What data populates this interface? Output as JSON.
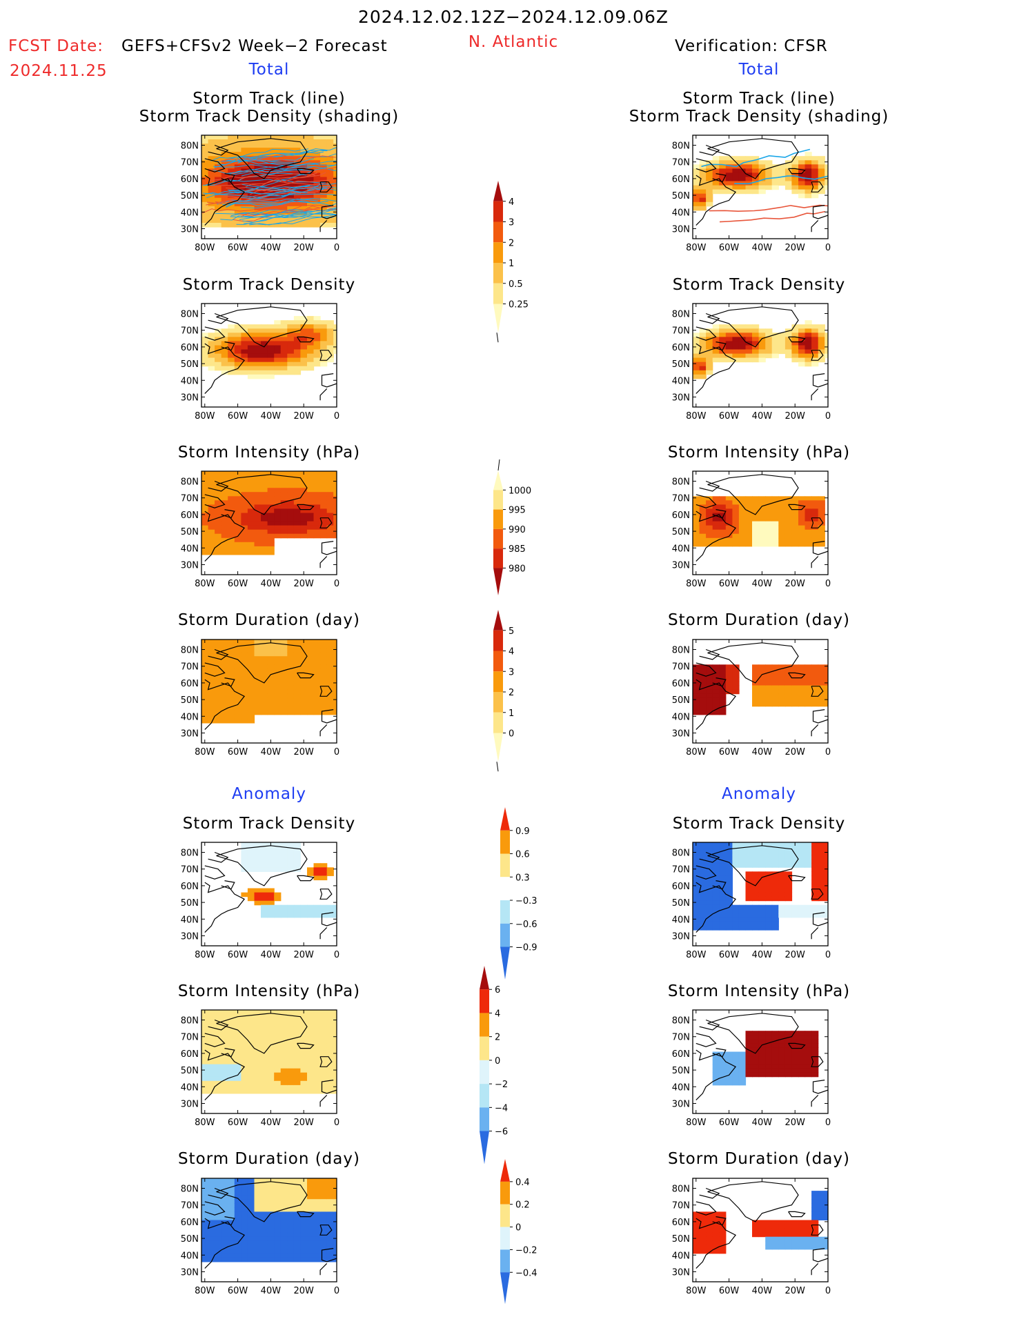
{
  "header": {
    "date_range": "2024.12.02.12Z−2024.12.09.06Z",
    "fcst_label": "FCST Date:",
    "fcst_date": "2024.11.25",
    "forecast_name": "GEFS+CFSv2 Week−2 Forecast",
    "region": "N. Atlantic",
    "verification": "Verification: CFSR"
  },
  "sections": {
    "total": "Total",
    "anomaly": "Anomaly"
  },
  "panel_titles": {
    "track_line": "Storm Track (line)",
    "track_shading": "Storm Track Density (shading)",
    "density": "Storm Track Density",
    "intensity": "Storm Intensity (hPa)",
    "duration": "Storm Duration (day)"
  },
  "axes": {
    "lat_labels": [
      "80N",
      "70N",
      "60N",
      "50N",
      "40N",
      "30N"
    ],
    "lon_labels": [
      "80W",
      "60W",
      "40W",
      "20W",
      "0"
    ]
  },
  "colorbars": [
    {
      "id": "cb-density-total",
      "labels": [
        "4",
        "3",
        "2",
        "1",
        "0.5",
        "0.25"
      ],
      "colors": [
        "#a50d0d",
        "#d8290c",
        "#f25a0e",
        "#f99a0c",
        "#fbc14a",
        "#fde68a",
        "#fffabe"
      ]
    },
    {
      "id": "cb-intensity-total",
      "labels": [
        "1000",
        "995",
        "990",
        "985",
        "980"
      ],
      "colors": [
        "#fffabe",
        "#fde68a",
        "#f99a0c",
        "#f25a0e",
        "#d8290c",
        "#a50d0d"
      ]
    },
    {
      "id": "cb-duration-total",
      "labels": [
        "5",
        "4",
        "3",
        "2",
        "1",
        "0"
      ],
      "colors": [
        "#a50d0d",
        "#d8290c",
        "#f25a0e",
        "#f99a0c",
        "#fbc14a",
        "#fde68a",
        "#fffabe"
      ]
    },
    {
      "id": "cb-density-anom",
      "labels": [
        "0.9",
        "0.6",
        "0.3",
        "−0.3",
        "−0.6",
        "−0.9"
      ],
      "colors": [
        "#ee2a0a",
        "#f99a0c",
        "#fde68a",
        "#ffffff",
        "#b5e6f5",
        "#6ab1f0",
        "#2a6be0"
      ]
    },
    {
      "id": "cb-intensity-anom",
      "labels": [
        "6",
        "4",
        "2",
        "0",
        "−2",
        "−4",
        "−6"
      ],
      "colors": [
        "#a50d0d",
        "#ee2a0a",
        "#f99a0c",
        "#fde68a",
        "#dff4fb",
        "#b5e6f5",
        "#6ab1f0",
        "#2a6be0"
      ]
    },
    {
      "id": "cb-duration-anom",
      "labels": [
        "0.4",
        "0.2",
        "0",
        "−0.2",
        "−0.4"
      ],
      "colors": [
        "#ee2a0a",
        "#f99a0c",
        "#fde68a",
        "#dff4fb",
        "#6ab1f0",
        "#2a6be0"
      ]
    }
  ]
}
